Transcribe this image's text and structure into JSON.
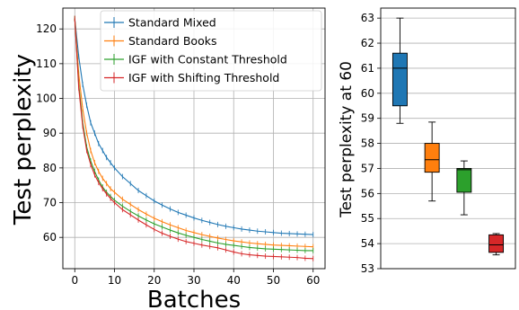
{
  "chart_data": [
    {
      "type": "line",
      "xlabel": "Batches",
      "ylabel": "Test perplexity",
      "xlim": [
        -3,
        63
      ],
      "ylim": [
        51,
        126
      ],
      "xticks": [
        0,
        10,
        20,
        30,
        40,
        50,
        60
      ],
      "yticks": [
        60,
        70,
        80,
        90,
        100,
        110,
        120
      ],
      "grid": true,
      "legend_position": "top-right",
      "x": [
        0,
        1,
        2,
        3,
        4,
        5,
        6,
        7,
        8,
        9,
        10,
        12,
        14,
        16,
        18,
        20,
        22,
        24,
        26,
        28,
        30,
        32,
        34,
        36,
        38,
        40,
        42,
        44,
        46,
        48,
        50,
        52,
        54,
        56,
        58,
        60
      ],
      "series": [
        {
          "name": "Standard Mixed",
          "color": "#1f77b4",
          "values": [
            123,
            112,
            104,
            98,
            93,
            90,
            87,
            85,
            83,
            81.5,
            80,
            77.5,
            75.5,
            73.5,
            72,
            70.5,
            69.3,
            68.2,
            67.2,
            66.4,
            65.6,
            64.9,
            64.3,
            63.7,
            63.2,
            62.8,
            62.4,
            62.1,
            61.8,
            61.6,
            61.4,
            61.2,
            61.1,
            61.0,
            60.9,
            60.8
          ]
        },
        {
          "name": "Standard Books",
          "color": "#ff7f0e",
          "values": [
            123,
            107,
            97,
            90,
            85,
            81.5,
            79,
            77,
            75.5,
            74,
            73,
            71,
            69.5,
            68,
            66.7,
            65.5,
            64.5,
            63.6,
            62.8,
            62.0,
            61.4,
            60.8,
            60.3,
            59.8,
            59.4,
            59.0,
            58.7,
            58.4,
            58.2,
            58.0,
            57.8,
            57.7,
            57.6,
            57.5,
            57.4,
            57.3
          ]
        },
        {
          "name": "IGF with Constant Threshold",
          "color": "#2ca02c",
          "values": [
            123,
            104,
            93,
            86,
            82,
            79,
            76.5,
            74.5,
            73,
            71.8,
            70.7,
            69,
            67.5,
            66.2,
            65,
            63.9,
            63,
            62.1,
            61.3,
            60.6,
            60,
            59.4,
            58.9,
            58.4,
            58.0,
            57.7,
            57.4,
            57.1,
            56.9,
            56.7,
            56.6,
            56.5,
            56.4,
            56.3,
            56.2,
            56.2
          ]
        },
        {
          "name": "IGF with Shifting Threshold",
          "color": "#d62728",
          "values": [
            123,
            103,
            92,
            85,
            81,
            78,
            75.8,
            74,
            72.5,
            71.2,
            70,
            68,
            66.5,
            65,
            63.6,
            62.3,
            61.2,
            60.3,
            59.5,
            58.8,
            58.3,
            57.8,
            57.4,
            57.0,
            56.4,
            55.8,
            55.3,
            55.0,
            54.8,
            54.6,
            54.5,
            54.4,
            54.3,
            54.2,
            54.0,
            53.9
          ]
        }
      ]
    },
    {
      "type": "box",
      "ylabel": "Test perplexity at 60",
      "ylim": [
        53,
        63.4
      ],
      "yticks": [
        53,
        54,
        55,
        56,
        57,
        58,
        59,
        60,
        61,
        62,
        63
      ],
      "grid": true,
      "boxes": [
        {
          "color": "#1f77b4",
          "min": 58.8,
          "q1": 59.5,
          "median": 61.0,
          "q3": 61.6,
          "max": 63.0
        },
        {
          "color": "#ff7f0e",
          "min": 55.7,
          "q1": 56.85,
          "median": 57.35,
          "q3": 58.0,
          "max": 58.85
        },
        {
          "color": "#2ca02c",
          "min": 55.15,
          "q1": 56.05,
          "median": 56.95,
          "q3": 57.0,
          "max": 57.3
        },
        {
          "color": "#d62728",
          "min": 53.55,
          "q1": 53.65,
          "median": 53.95,
          "q3": 54.35,
          "max": 54.4
        }
      ]
    }
  ]
}
